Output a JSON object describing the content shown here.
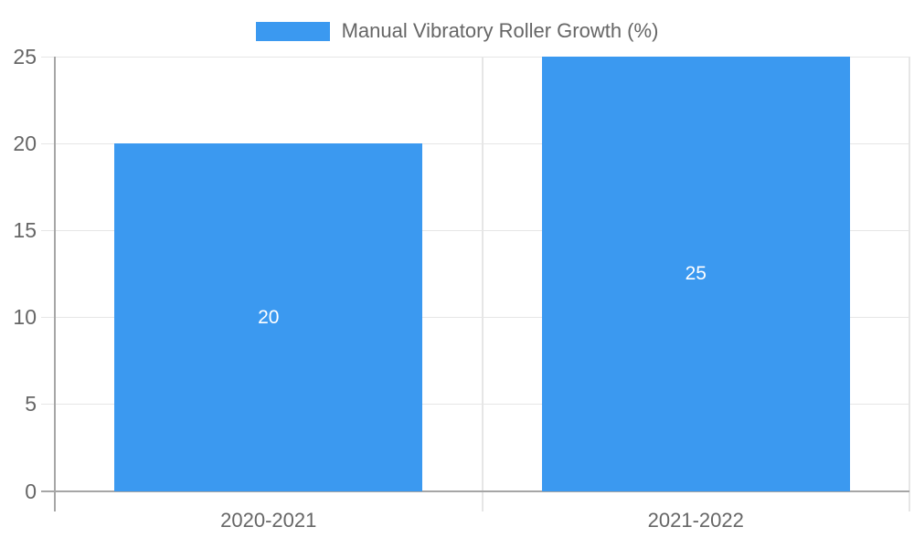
{
  "legend": {
    "label": "Manual Vibratory Roller Growth (%)"
  },
  "chart_data": {
    "type": "bar",
    "title": "",
    "categories": [
      "2020-2021",
      "2021-2022"
    ],
    "values": [
      20,
      25
    ],
    "series_name": "Manual Vibratory Roller Growth (%)",
    "xlabel": "",
    "ylabel": "",
    "y_ticks": [
      0,
      5,
      10,
      15,
      20,
      25
    ],
    "ylim": [
      0,
      25
    ],
    "grid": true,
    "legend_position": "top",
    "bar_labels": [
      "20",
      "25"
    ]
  },
  "colors": {
    "bar": "#3b99f0",
    "bar_label": "#ffffff",
    "gridline": "#e6e6e6",
    "axis_line": "#a6a6a6",
    "divider": "#e6e6e6",
    "text": "#666666"
  }
}
